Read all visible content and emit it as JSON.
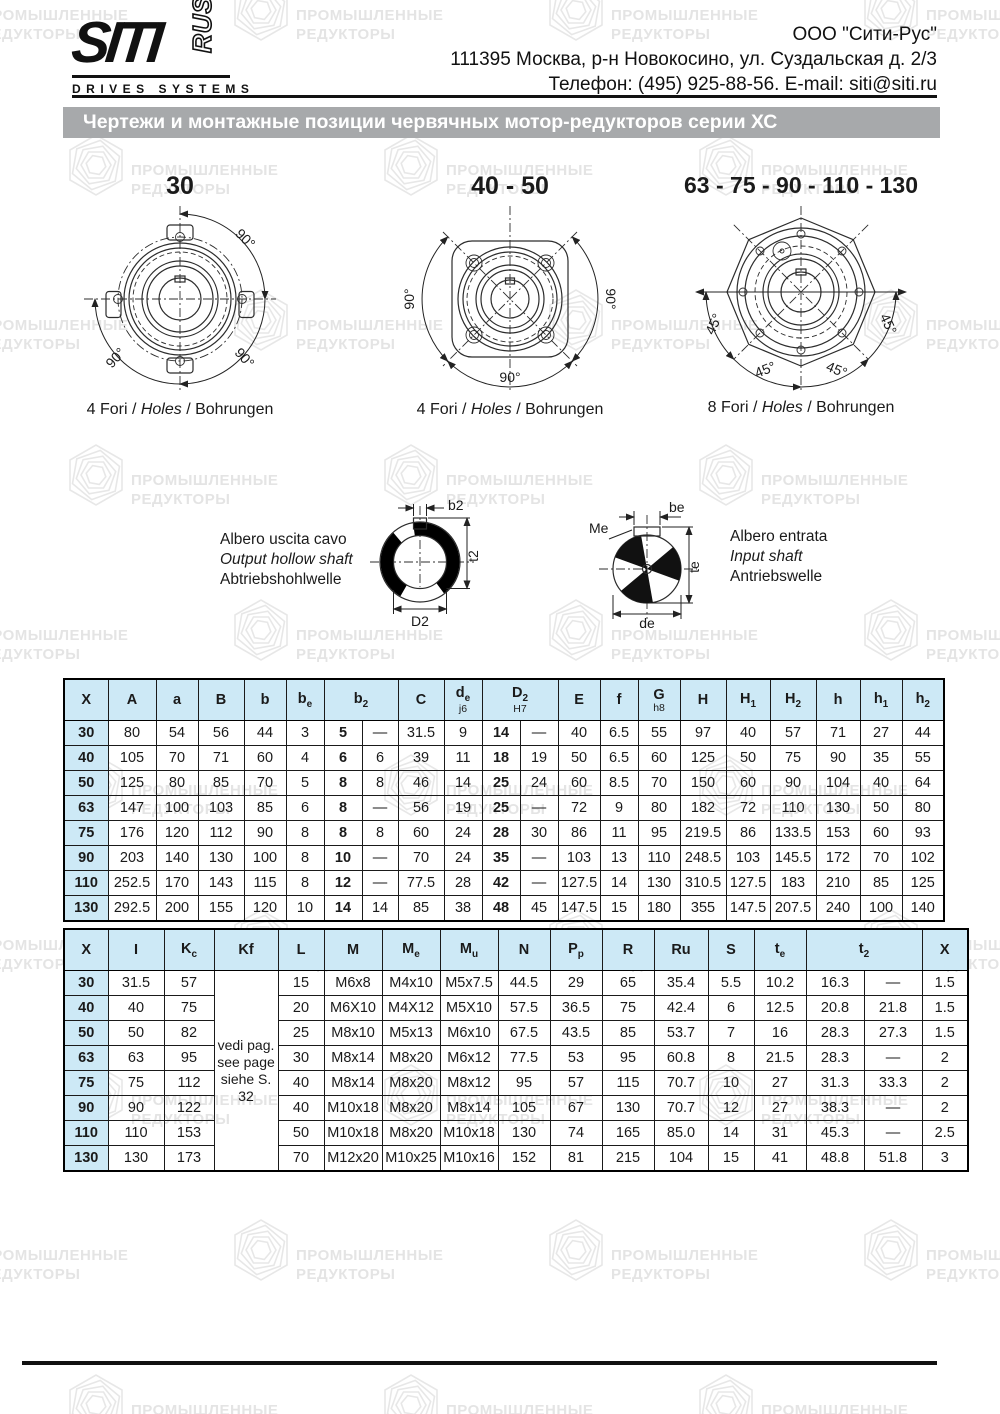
{
  "header": {
    "logo": {
      "siti": "SITI",
      "rus": "RUS",
      "drives": "DRIVES SYSTEMS"
    },
    "company": [
      "ООО \"Сити-Рус\"",
      "111395 Москва, р-н Новокосино, ул. Суздальская д. 2/3",
      "Телефон: (495) 925-88-56. E-mail: siti@siti.ru"
    ]
  },
  "banner": {
    "title": "Чертежи и монтажные позиции червячных мотор-редукторов серии ХС"
  },
  "drawings": {
    "deg90": "90°",
    "deg45": "45°",
    "items": [
      {
        "title": "30",
        "caption_prefix": "4 Fori / ",
        "caption_italic": "Holes",
        "caption_suffix": " / Bohrungen"
      },
      {
        "title": "40 - 50",
        "caption_prefix": "4 Fori / ",
        "caption_italic": "Holes",
        "caption_suffix": " / Bohrungen"
      },
      {
        "title": "63 - 75 - 90 - 110 - 130",
        "caption_prefix": "8 Fori / ",
        "caption_italic": "Holes",
        "caption_suffix": " / Bohrungen"
      }
    ]
  },
  "shafts": {
    "output": {
      "lines": [
        "Albero uscita cavo",
        "Output hollow shaft",
        "Abtriebshohlwelle"
      ],
      "dims": {
        "b2": "b2",
        "t2": "t2",
        "D2": "D2"
      }
    },
    "input": {
      "lines": [
        "Albero entrata",
        "Input shaft",
        "Antriebswelle"
      ],
      "dims": {
        "be": "be",
        "Me": "Me",
        "te": "te",
        "de": "de"
      }
    }
  },
  "table1": {
    "headers": [
      {
        "m": "X"
      },
      {
        "m": "A"
      },
      {
        "m": "a"
      },
      {
        "m": "B"
      },
      {
        "m": "b"
      },
      {
        "m": "b",
        "s": "e"
      },
      {
        "m": "b",
        "s": "2",
        "colspan": 2
      },
      {
        "m": "C"
      },
      {
        "m": "d",
        "s": "e",
        "note": "j6"
      },
      {
        "m": "D",
        "s": "2",
        "note": "H7",
        "colspan": 2
      },
      {
        "m": "E"
      },
      {
        "m": "f"
      },
      {
        "m": "G",
        "note": "h8"
      },
      {
        "m": "H"
      },
      {
        "m": "H",
        "s": "1"
      },
      {
        "m": "H",
        "s": "2"
      },
      {
        "m": "h"
      },
      {
        "m": "h",
        "s": "1"
      },
      {
        "m": "h",
        "s": "2"
      }
    ],
    "bold_cols": [
      0,
      6,
      10
    ],
    "rows": [
      [
        "30",
        "80",
        "54",
        "56",
        "44",
        "3",
        "5",
        "—",
        "31.5",
        "9",
        "14",
        "—",
        "40",
        "6.5",
        "55",
        "97",
        "40",
        "57",
        "71",
        "27",
        "44"
      ],
      [
        "40",
        "105",
        "70",
        "71",
        "60",
        "4",
        "6",
        "6",
        "39",
        "11",
        "18",
        "19",
        "50",
        "6.5",
        "60",
        "125",
        "50",
        "75",
        "90",
        "35",
        "55"
      ],
      [
        "50",
        "125",
        "80",
        "85",
        "70",
        "5",
        "8",
        "8",
        "46",
        "14",
        "25",
        "24",
        "60",
        "8.5",
        "70",
        "150",
        "60",
        "90",
        "104",
        "40",
        "64"
      ],
      [
        "63",
        "147",
        "100",
        "103",
        "85",
        "6",
        "8",
        "—",
        "56",
        "19",
        "25",
        "—",
        "72",
        "9",
        "80",
        "182",
        "72",
        "110",
        "130",
        "50",
        "80"
      ],
      [
        "75",
        "176",
        "120",
        "112",
        "90",
        "8",
        "8",
        "8",
        "60",
        "24",
        "28",
        "30",
        "86",
        "11",
        "95",
        "219.5",
        "86",
        "133.5",
        "153",
        "60",
        "93"
      ],
      [
        "90",
        "203",
        "140",
        "130",
        "100",
        "8",
        "10",
        "—",
        "70",
        "24",
        "35",
        "—",
        "103",
        "13",
        "110",
        "248.5",
        "103",
        "145.5",
        "172",
        "70",
        "102"
      ],
      [
        "110",
        "252.5",
        "170",
        "143",
        "115",
        "8",
        "12",
        "—",
        "77.5",
        "28",
        "42",
        "—",
        "127.5",
        "14",
        "130",
        "310.5",
        "127.5",
        "183",
        "210",
        "85",
        "125"
      ],
      [
        "130",
        "292.5",
        "200",
        "155",
        "120",
        "10",
        "14",
        "14",
        "85",
        "38",
        "48",
        "45",
        "147.5",
        "15",
        "180",
        "355",
        "147.5",
        "207.5",
        "240",
        "100",
        "140"
      ]
    ]
  },
  "table2": {
    "headers": [
      {
        "m": "X"
      },
      {
        "m": "I"
      },
      {
        "m": "K",
        "s": "c"
      },
      {
        "m": "Kf"
      },
      {
        "m": "L"
      },
      {
        "m": "M"
      },
      {
        "m": "M",
        "s": "e"
      },
      {
        "m": "M",
        "s": "u"
      },
      {
        "m": "N"
      },
      {
        "m": "P",
        "s": "p"
      },
      {
        "m": "R"
      },
      {
        "m": "Ru"
      },
      {
        "m": "S"
      },
      {
        "m": "t",
        "s": "e"
      },
      {
        "m": "t",
        "s": "2",
        "colspan": 2
      },
      {
        "m": "X"
      }
    ],
    "kf_lines": [
      "vedi pag.",
      "see page",
      "siehe S.",
      "32"
    ],
    "bold_cols": [
      0
    ],
    "rows": [
      [
        "30",
        "31.5",
        "57",
        "15",
        "M6x8",
        "M4x10",
        "M5x7.5",
        "44.5",
        "29",
        "65",
        "35.4",
        "5.5",
        "10.2",
        "16.3",
        "—",
        "1.5"
      ],
      [
        "40",
        "40",
        "75",
        "20",
        "M6X10",
        "M4X12",
        "M5X10",
        "57.5",
        "36.5",
        "75",
        "42.4",
        "6",
        "12.5",
        "20.8",
        "21.8",
        "1.5"
      ],
      [
        "50",
        "50",
        "82",
        "25",
        "M8x10",
        "M5x13",
        "M6x10",
        "67.5",
        "43.5",
        "85",
        "53.7",
        "7",
        "16",
        "28.3",
        "27.3",
        "1.5"
      ],
      [
        "63",
        "63",
        "95",
        "30",
        "M8x14",
        "M8x20",
        "M6x12",
        "77.5",
        "53",
        "95",
        "60.8",
        "8",
        "21.5",
        "28.3",
        "—",
        "2"
      ],
      [
        "75",
        "75",
        "112",
        "40",
        "M8x14",
        "M8x20",
        "M8x12",
        "95",
        "57",
        "115",
        "70.7",
        "10",
        "27",
        "31.3",
        "33.3",
        "2"
      ],
      [
        "90",
        "90",
        "122",
        "40",
        "M10x18",
        "M8x20",
        "M8x14",
        "105",
        "67",
        "130",
        "70.7",
        "12",
        "27",
        "38.3",
        "—",
        "2"
      ],
      [
        "110",
        "110",
        "153",
        "50",
        "M10x18",
        "M8x20",
        "M10x18",
        "130",
        "74",
        "165",
        "85.0",
        "14",
        "31",
        "45.3",
        "—",
        "2.5"
      ],
      [
        "130",
        "130",
        "173",
        "70",
        "M12x20",
        "M10x25",
        "M10x16",
        "152",
        "81",
        "215",
        "104",
        "15",
        "41",
        "48.8",
        "51.8",
        "3"
      ]
    ]
  },
  "watermark": {
    "line1": "ПРОМЫШЛЕННЫЕ",
    "line2": "РЕДУКТОРЫ"
  },
  "colors": {
    "table_header_bg": "#cde9f6",
    "banner_bg": "#a7a9ab",
    "rule_black": "#111111"
  }
}
